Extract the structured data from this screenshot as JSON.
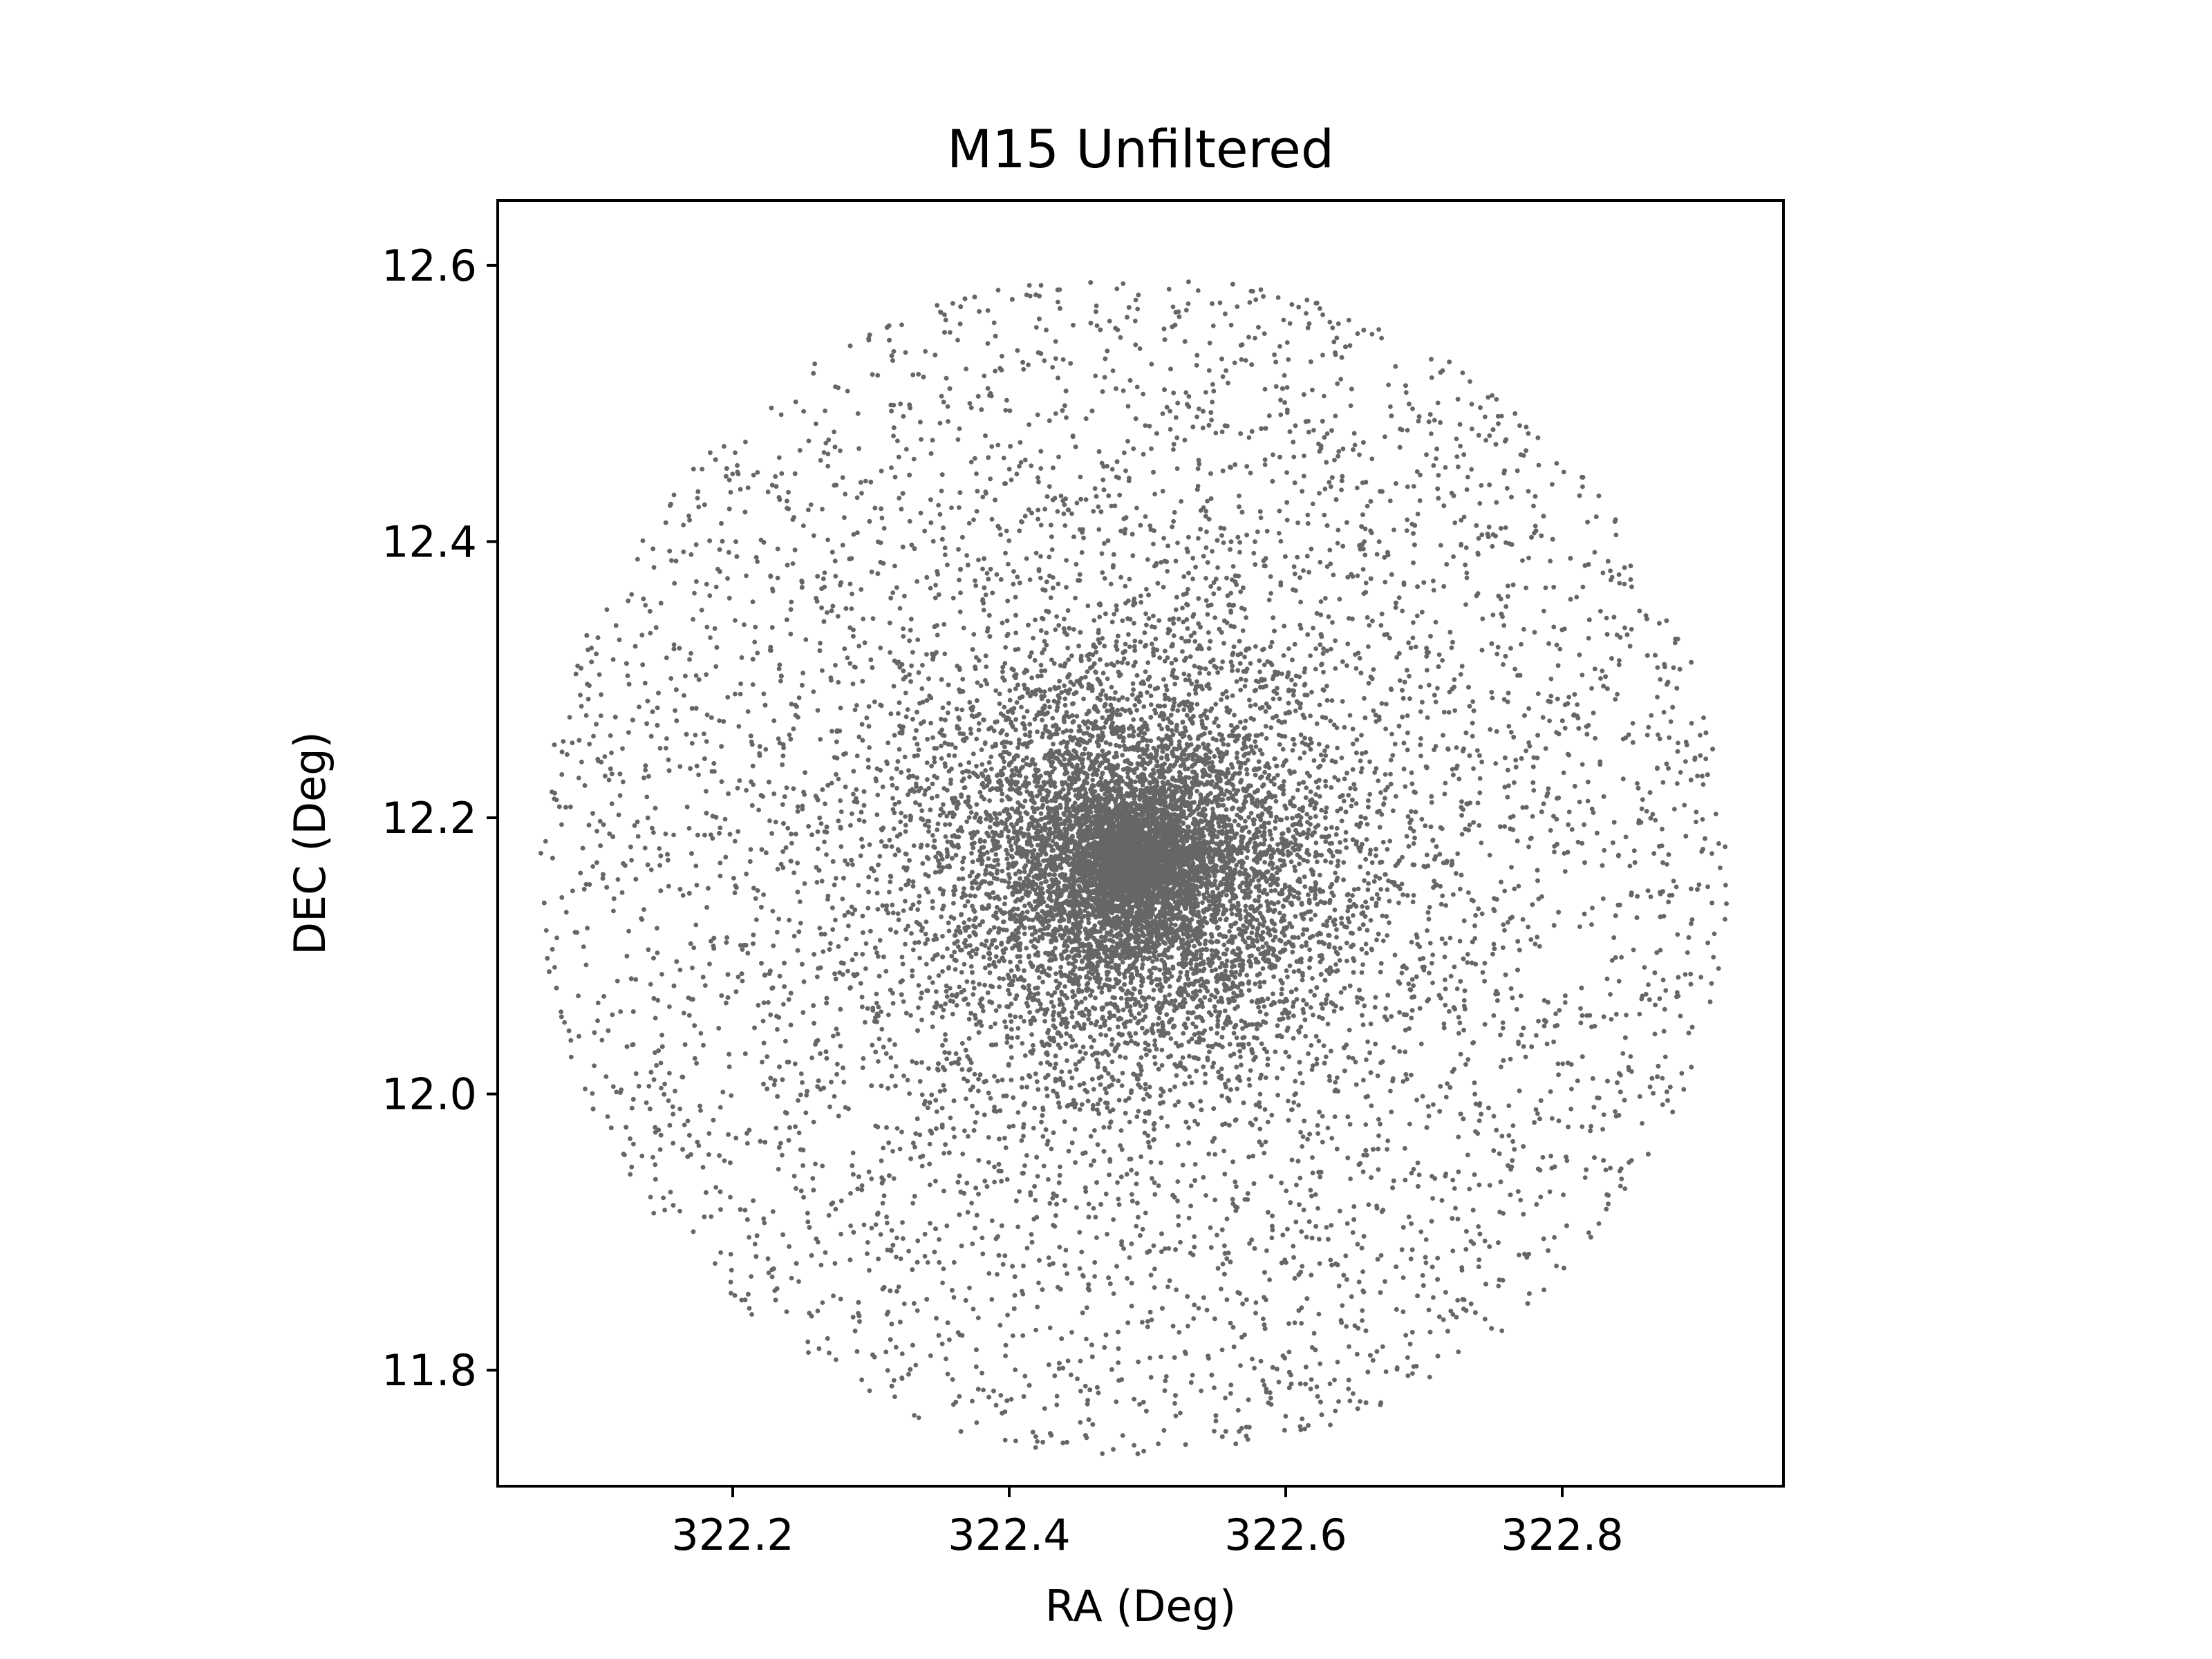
{
  "chart_data": {
    "type": "scatter",
    "title": "M15 Unfiltered",
    "xlabel": "RA (Deg)",
    "ylabel": "DEC (Deg)",
    "xlim": [
      322.03,
      322.96
    ],
    "ylim": [
      11.716,
      12.647
    ],
    "xticks": [
      322.2,
      322.4,
      322.6,
      322.8
    ],
    "yticks": [
      11.8,
      12.0,
      12.2,
      12.4,
      12.6
    ],
    "xtick_labels": [
      "322.2",
      "322.4",
      "322.6",
      "322.8"
    ],
    "ytick_labels": [
      "11.8",
      "12.0",
      "12.2",
      "12.4",
      "12.6"
    ],
    "grid": false,
    "legend": "none",
    "marker_color": "#666666",
    "series": [
      {
        "description_center": [
          322.49,
          12.166
        ],
        "outer_radius_deg": 0.43,
        "core_radius_deg": 0.12,
        "point_count_core": 9000,
        "point_count_halo": 7500
      }
    ]
  }
}
